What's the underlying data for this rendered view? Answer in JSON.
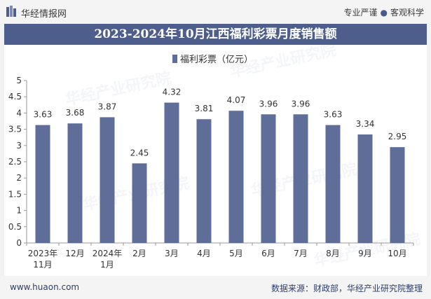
{
  "header": {
    "brand": "华经情报网",
    "slogan_left": "专业严谨",
    "slogan_right": "客观科学"
  },
  "title": "2023-2024年10月江西福利彩票月度销售额",
  "watermark": "华经产业研究院",
  "footer": {
    "site": "www.huaon.com",
    "source": "数据来源：财政部，华经产业研究院整理"
  },
  "colors": {
    "bar": "#5f6e99",
    "title_bg": "#4e5e8c"
  },
  "chart_data": {
    "type": "bar",
    "categories": [
      "2023年\n11月",
      "12月",
      "2024年\n1月",
      "2月",
      "3月",
      "4月",
      "5月",
      "6月",
      "7月",
      "8月",
      "9月",
      "10月"
    ],
    "series": [
      {
        "name": "福利彩票（亿元）",
        "values": [
          3.63,
          3.68,
          3.87,
          2.45,
          4.32,
          3.81,
          4.07,
          3.96,
          3.96,
          3.63,
          3.34,
          2.95
        ]
      }
    ],
    "ylim": [
      0,
      5
    ],
    "yticks": [
      0,
      0.5,
      1,
      1.5,
      2,
      2.5,
      3,
      3.5,
      4,
      4.5,
      5
    ],
    "legend_position": "top-center",
    "grid": false
  }
}
